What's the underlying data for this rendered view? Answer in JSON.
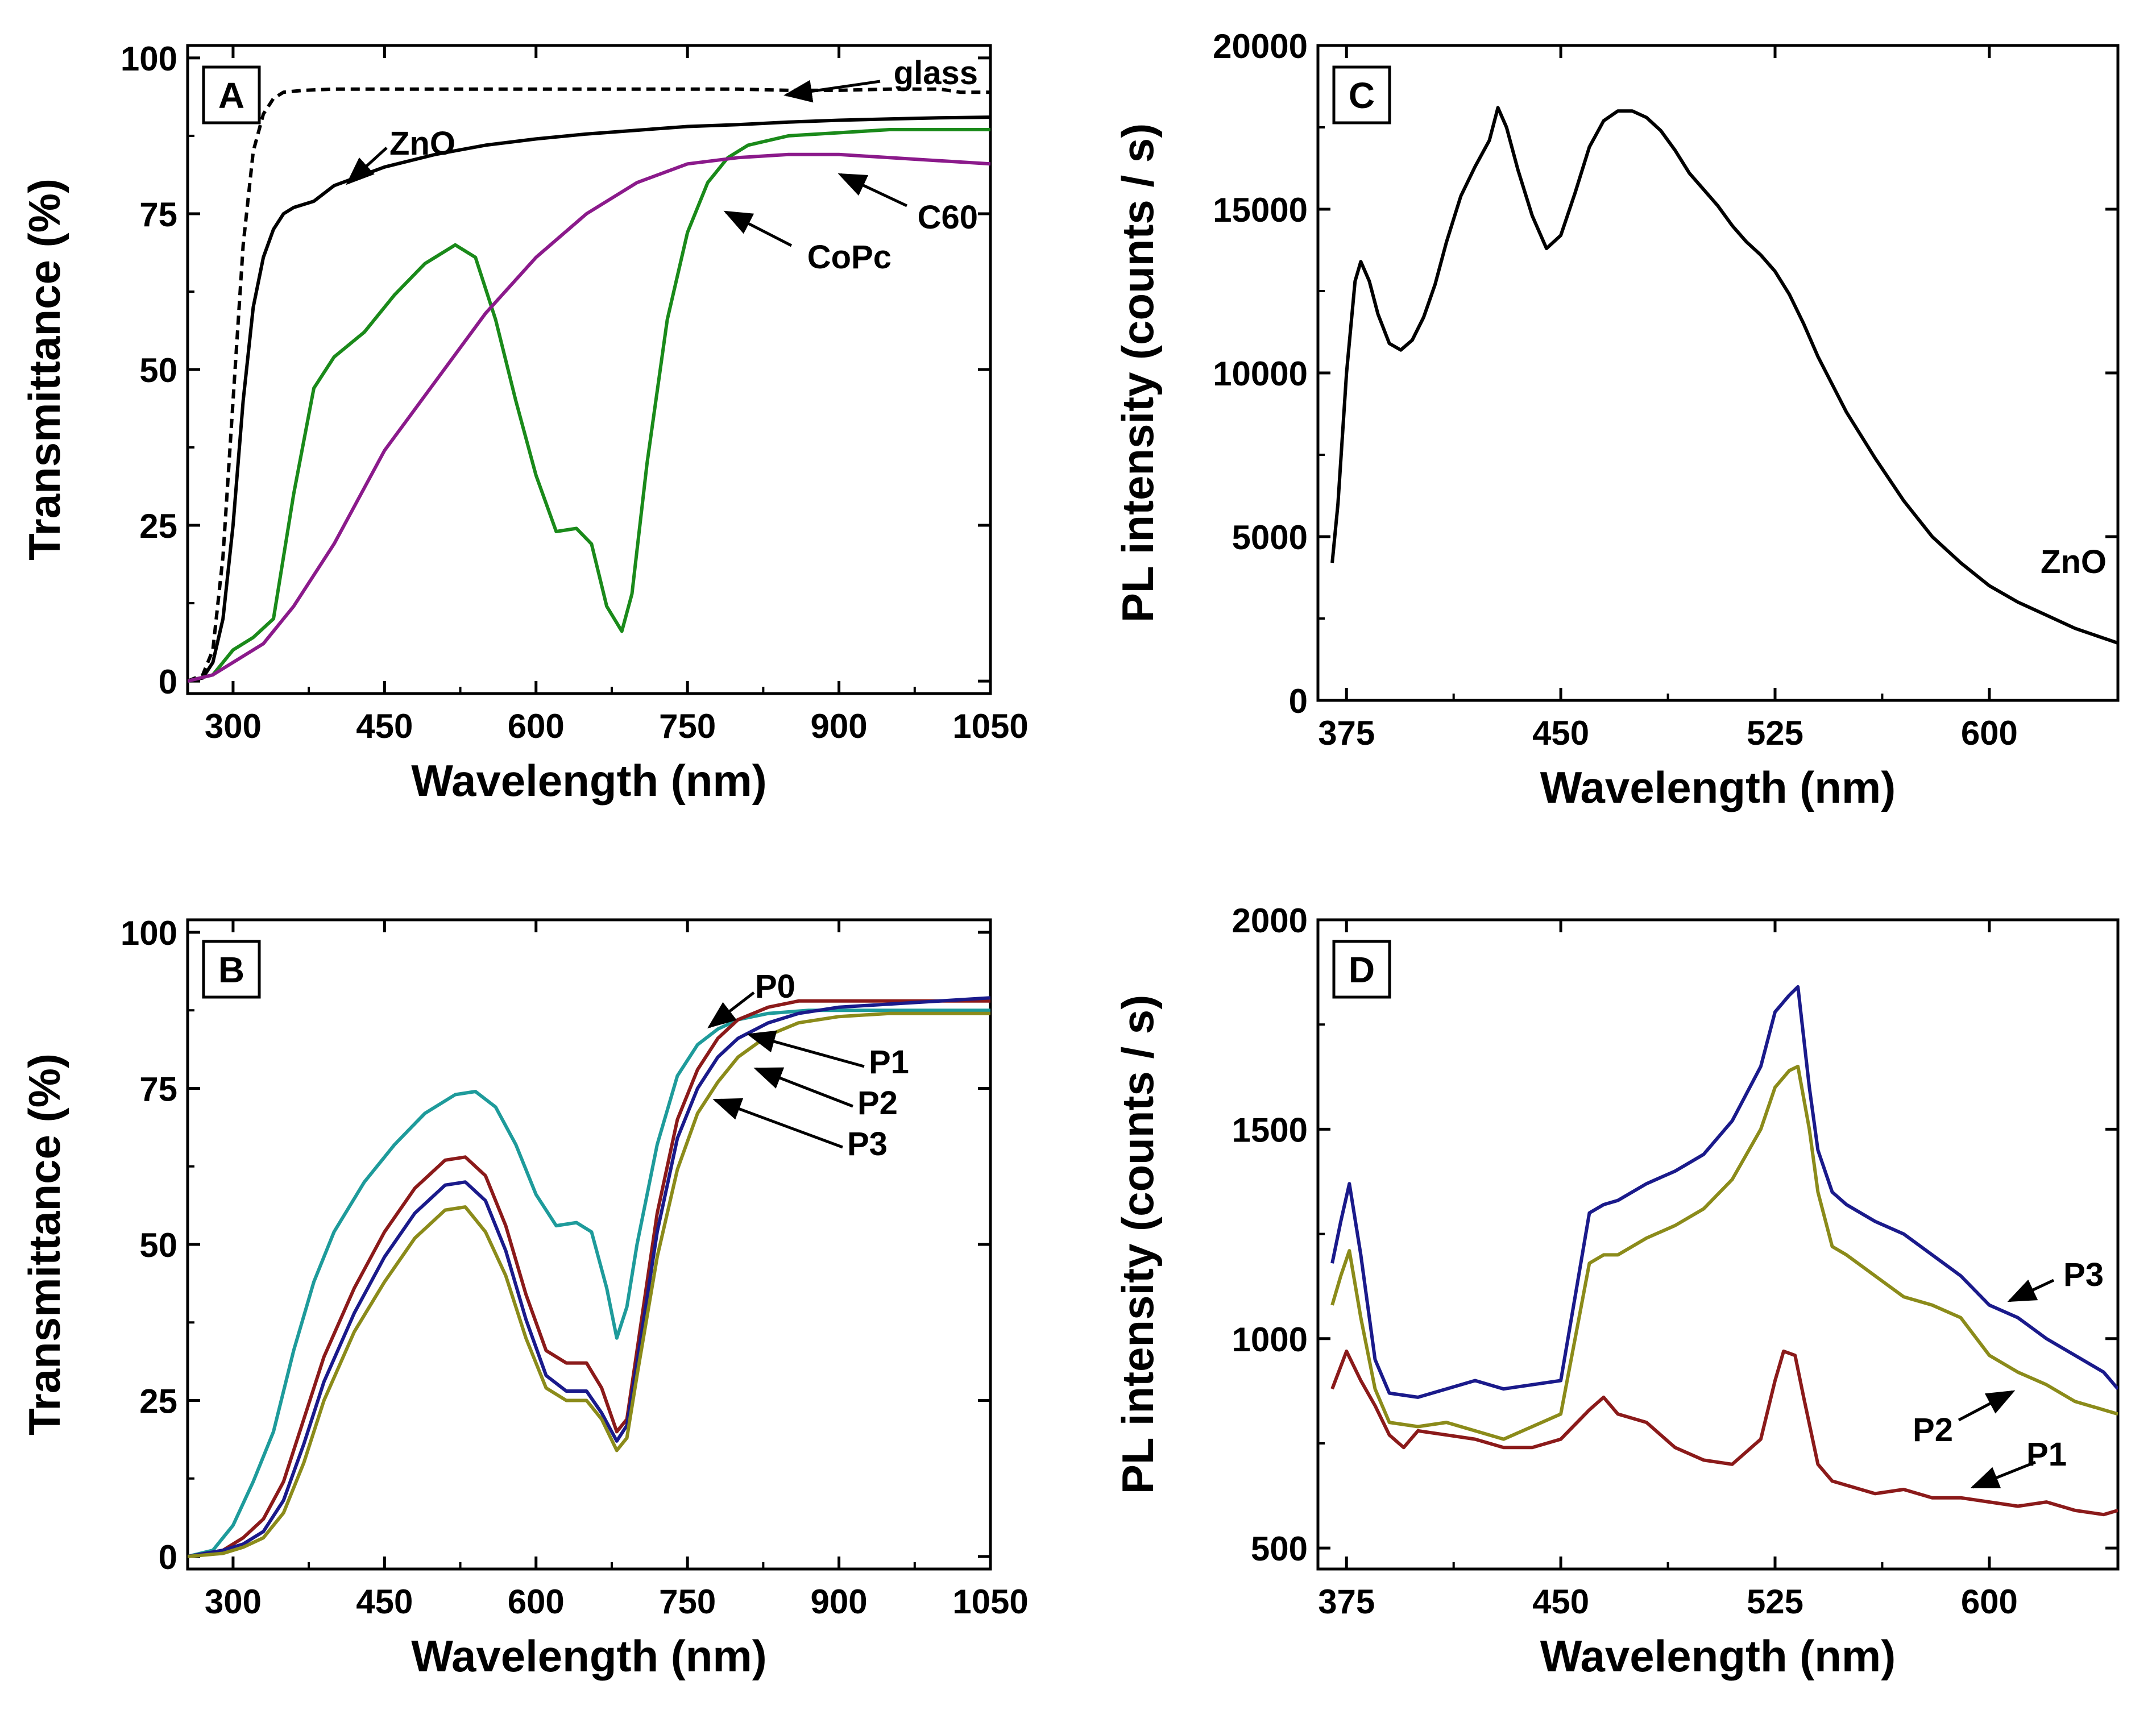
{
  "chart_data": [
    {
      "panel": "A",
      "type": "line",
      "xlabel": "Wavelength  (nm)",
      "ylabel": "Transmittance  (%)",
      "xlim": [
        255,
        1050
      ],
      "ylim": [
        -2,
        102
      ],
      "xticks": [
        300,
        450,
        600,
        750,
        900,
        1050
      ],
      "yticks": [
        0,
        25,
        50,
        75,
        100
      ],
      "series": [
        {
          "name": "glass",
          "color": "#000000",
          "dash": true,
          "x": [
            255,
            270,
            280,
            290,
            300,
            310,
            320,
            330,
            340,
            350,
            370,
            400,
            450,
            500,
            550,
            600,
            650,
            700,
            750,
            800,
            850,
            900,
            950,
            1000,
            1020,
            1050
          ],
          "y": [
            0,
            1,
            5,
            20,
            45,
            70,
            85,
            91,
            93.5,
            94.5,
            94.8,
            95,
            95,
            95,
            95,
            95,
            95,
            95,
            95,
            95,
            94.8,
            94.8,
            95,
            95,
            94.5,
            94.5
          ]
        },
        {
          "name": "ZnO",
          "color": "#000000",
          "x": [
            255,
            270,
            280,
            290,
            300,
            310,
            320,
            330,
            340,
            350,
            360,
            370,
            380,
            400,
            450,
            500,
            550,
            600,
            650,
            700,
            750,
            800,
            850,
            900,
            950,
            1000,
            1050
          ],
          "y": [
            0,
            0.5,
            3,
            10,
            25,
            45,
            60,
            68,
            72.5,
            75,
            76,
            76.5,
            77,
            79.5,
            82.5,
            84.5,
            86,
            87,
            87.8,
            88.4,
            89,
            89.3,
            89.7,
            90,
            90.2,
            90.4,
            90.5
          ]
        },
        {
          "name": "CoPc",
          "color": "#1a8a1a",
          "x": [
            255,
            280,
            300,
            320,
            340,
            360,
            380,
            400,
            430,
            460,
            490,
            520,
            540,
            560,
            580,
            600,
            620,
            640,
            655,
            670,
            685,
            695,
            710,
            730,
            750,
            770,
            790,
            810,
            850,
            900,
            950,
            1000,
            1050
          ],
          "y": [
            0,
            1,
            5,
            7,
            10,
            30,
            47,
            52,
            56,
            62,
            67,
            70,
            68,
            58,
            45,
            33,
            24,
            24.5,
            22,
            12,
            8,
            14,
            35,
            58,
            72,
            80,
            84,
            86,
            87.5,
            88,
            88.5,
            88.5,
            88.5
          ]
        },
        {
          "name": "C60",
          "color": "#8b1a8b",
          "x": [
            255,
            280,
            300,
            330,
            360,
            400,
            450,
            500,
            550,
            600,
            650,
            700,
            750,
            800,
            850,
            900,
            950,
            1000,
            1050
          ],
          "y": [
            0,
            1,
            3,
            6,
            12,
            22,
            37,
            48,
            59,
            68,
            75,
            80,
            83,
            84,
            84.5,
            84.5,
            84,
            83.5,
            83
          ]
        }
      ],
      "annotations": [
        "glass",
        "ZnO",
        "C60",
        "CoPc"
      ]
    },
    {
      "panel": "B",
      "type": "line",
      "xlabel": "Wavelength  (nm)",
      "ylabel": "Transmittance  (%)",
      "xlim": [
        255,
        1050
      ],
      "ylim": [
        -2,
        102
      ],
      "xticks": [
        300,
        450,
        600,
        750,
        900,
        1050
      ],
      "yticks": [
        0,
        25,
        50,
        75,
        100
      ],
      "series": [
        {
          "name": "P0",
          "color": "#1e9b9b",
          "x": [
            255,
            280,
            300,
            320,
            340,
            360,
            380,
            400,
            430,
            460,
            490,
            520,
            540,
            560,
            580,
            600,
            620,
            640,
            655,
            670,
            680,
            690,
            700,
            720,
            740,
            760,
            780,
            800,
            830,
            870,
            900,
            950,
            1000,
            1050
          ],
          "y": [
            0,
            1,
            5,
            12,
            20,
            33,
            44,
            52,
            60,
            66,
            71,
            74,
            74.5,
            72,
            66,
            58,
            53,
            53.5,
            52,
            43,
            35,
            40,
            50,
            66,
            77,
            82,
            84.5,
            86,
            87,
            87.5,
            87.5,
            87.5,
            87.5,
            87.5
          ]
        },
        {
          "name": "P1",
          "color": "#8b1a1a",
          "x": [
            255,
            290,
            310,
            330,
            350,
            370,
            390,
            420,
            450,
            480,
            510,
            530,
            550,
            570,
            590,
            610,
            630,
            650,
            665,
            680,
            690,
            700,
            720,
            740,
            760,
            780,
            800,
            830,
            860,
            900,
            950,
            1000,
            1050
          ],
          "y": [
            0,
            1,
            3,
            6,
            12,
            22,
            32,
            43,
            52,
            59,
            63.5,
            64,
            61,
            53,
            42,
            33,
            31,
            31,
            27,
            20,
            22,
            33,
            55,
            70,
            78,
            83,
            86,
            88,
            89,
            89,
            89,
            89,
            89
          ]
        },
        {
          "name": "P2",
          "color": "#1a1a8b",
          "x": [
            255,
            290,
            310,
            330,
            350,
            370,
            390,
            420,
            450,
            480,
            510,
            530,
            550,
            570,
            590,
            610,
            630,
            650,
            665,
            680,
            690,
            700,
            720,
            740,
            760,
            780,
            800,
            830,
            860,
            900,
            950,
            1000,
            1050
          ],
          "y": [
            0,
            1,
            2,
            4,
            9,
            18,
            28,
            39,
            48,
            55,
            59.5,
            60,
            57,
            49,
            38,
            29,
            26.5,
            26.5,
            23,
            18.5,
            21,
            31,
            52,
            67,
            75,
            80,
            83,
            85.5,
            87,
            88,
            88.5,
            89,
            89.5
          ]
        },
        {
          "name": "P3",
          "color": "#8b8b1a",
          "x": [
            255,
            290,
            310,
            330,
            350,
            370,
            390,
            420,
            450,
            480,
            510,
            530,
            550,
            570,
            590,
            610,
            630,
            650,
            665,
            680,
            690,
            700,
            720,
            740,
            760,
            780,
            800,
            830,
            860,
            900,
            950,
            1000,
            1050
          ],
          "y": [
            0,
            0.5,
            1.5,
            3,
            7,
            15,
            25,
            36,
            44,
            51,
            55.5,
            56,
            52,
            45,
            35,
            27,
            25,
            25,
            22,
            17,
            19,
            29,
            48,
            62,
            71,
            76,
            80,
            83.5,
            85.5,
            86.5,
            87,
            87,
            87
          ]
        }
      ],
      "annotations": [
        "P0",
        "P1",
        "P2",
        "P3"
      ]
    },
    {
      "panel": "C",
      "type": "line",
      "xlabel": "Wavelength  (nm)",
      "ylabel": "PL  intensity  (counts / s)",
      "xlim": [
        365,
        645
      ],
      "ylim": [
        0,
        20000
      ],
      "xticks": [
        375,
        450,
        525,
        600
      ],
      "yticks": [
        0,
        5000,
        10000,
        15000,
        20000
      ],
      "series": [
        {
          "name": "ZnO",
          "color": "#000000",
          "x": [
            370,
            372,
            375,
            378,
            380,
            383,
            386,
            390,
            394,
            398,
            402,
            406,
            410,
            415,
            420,
            425,
            428,
            431,
            435,
            440,
            445,
            450,
            455,
            460,
            465,
            470,
            475,
            480,
            485,
            490,
            495,
            500,
            505,
            510,
            515,
            520,
            525,
            530,
            535,
            540,
            550,
            560,
            570,
            580,
            590,
            600,
            610,
            620,
            630,
            640,
            645
          ],
          "y": [
            4200,
            6000,
            10000,
            12800,
            13400,
            12800,
            11800,
            10900,
            10700,
            11000,
            11700,
            12700,
            14000,
            15400,
            16300,
            17100,
            18100,
            17500,
            16200,
            14800,
            13800,
            14200,
            15500,
            16900,
            17700,
            18000,
            18000,
            17800,
            17400,
            16800,
            16100,
            15600,
            15100,
            14500,
            14000,
            13600,
            13100,
            12400,
            11500,
            10500,
            8800,
            7400,
            6100,
            5000,
            4200,
            3500,
            3000,
            2600,
            2200,
            1900,
            1750
          ]
        }
      ],
      "annotations": [
        "ZnO"
      ]
    },
    {
      "panel": "D",
      "type": "line",
      "xlabel": "Wavelength  (nm)",
      "ylabel": "PL  intensity  (counts / s)",
      "xlim": [
        365,
        645
      ],
      "ylim": [
        450,
        2000
      ],
      "xticks": [
        375,
        450,
        525,
        600
      ],
      "yticks": [
        500,
        1000,
        1500,
        2000
      ],
      "series": [
        {
          "name": "P1",
          "color": "#8b1a1a",
          "x": [
            370,
            375,
            380,
            385,
            390,
            395,
            400,
            410,
            420,
            430,
            440,
            450,
            460,
            465,
            470,
            480,
            490,
            500,
            510,
            520,
            525,
            528,
            532,
            535,
            540,
            545,
            550,
            560,
            570,
            580,
            590,
            600,
            610,
            620,
            630,
            640,
            645
          ],
          "y": [
            880,
            970,
            900,
            840,
            770,
            740,
            780,
            770,
            760,
            740,
            740,
            760,
            830,
            860,
            820,
            800,
            740,
            710,
            700,
            760,
            900,
            970,
            960,
            860,
            700,
            660,
            650,
            630,
            640,
            620,
            620,
            610,
            600,
            610,
            590,
            580,
            590
          ]
        },
        {
          "name": "P2",
          "color": "#8b8b1a",
          "x": [
            370,
            373,
            376,
            380,
            385,
            390,
            400,
            410,
            420,
            430,
            440,
            450,
            455,
            460,
            465,
            470,
            480,
            490,
            500,
            510,
            520,
            525,
            530,
            533,
            537,
            540,
            545,
            550,
            560,
            570,
            580,
            590,
            600,
            610,
            620,
            630,
            640,
            645
          ],
          "y": [
            1080,
            1150,
            1210,
            1050,
            880,
            800,
            790,
            800,
            780,
            760,
            790,
            820,
            1000,
            1180,
            1200,
            1200,
            1240,
            1270,
            1310,
            1380,
            1500,
            1600,
            1640,
            1650,
            1500,
            1350,
            1220,
            1200,
            1150,
            1100,
            1080,
            1050,
            960,
            920,
            890,
            850,
            830,
            820
          ]
        },
        {
          "name": "P3",
          "color": "#1a1a8b",
          "x": [
            370,
            373,
            376,
            380,
            385,
            390,
            400,
            410,
            420,
            430,
            440,
            450,
            455,
            460,
            465,
            470,
            480,
            490,
            500,
            510,
            520,
            525,
            530,
            533,
            537,
            540,
            545,
            550,
            560,
            570,
            580,
            590,
            600,
            610,
            620,
            630,
            640,
            645
          ],
          "y": [
            1180,
            1280,
            1370,
            1200,
            950,
            870,
            860,
            880,
            900,
            880,
            890,
            900,
            1100,
            1300,
            1320,
            1330,
            1370,
            1400,
            1440,
            1520,
            1650,
            1780,
            1820,
            1840,
            1600,
            1450,
            1350,
            1320,
            1280,
            1250,
            1200,
            1150,
            1080,
            1050,
            1000,
            960,
            920,
            880
          ]
        }
      ],
      "annotations": [
        "P3",
        "P2",
        "P1"
      ]
    }
  ]
}
